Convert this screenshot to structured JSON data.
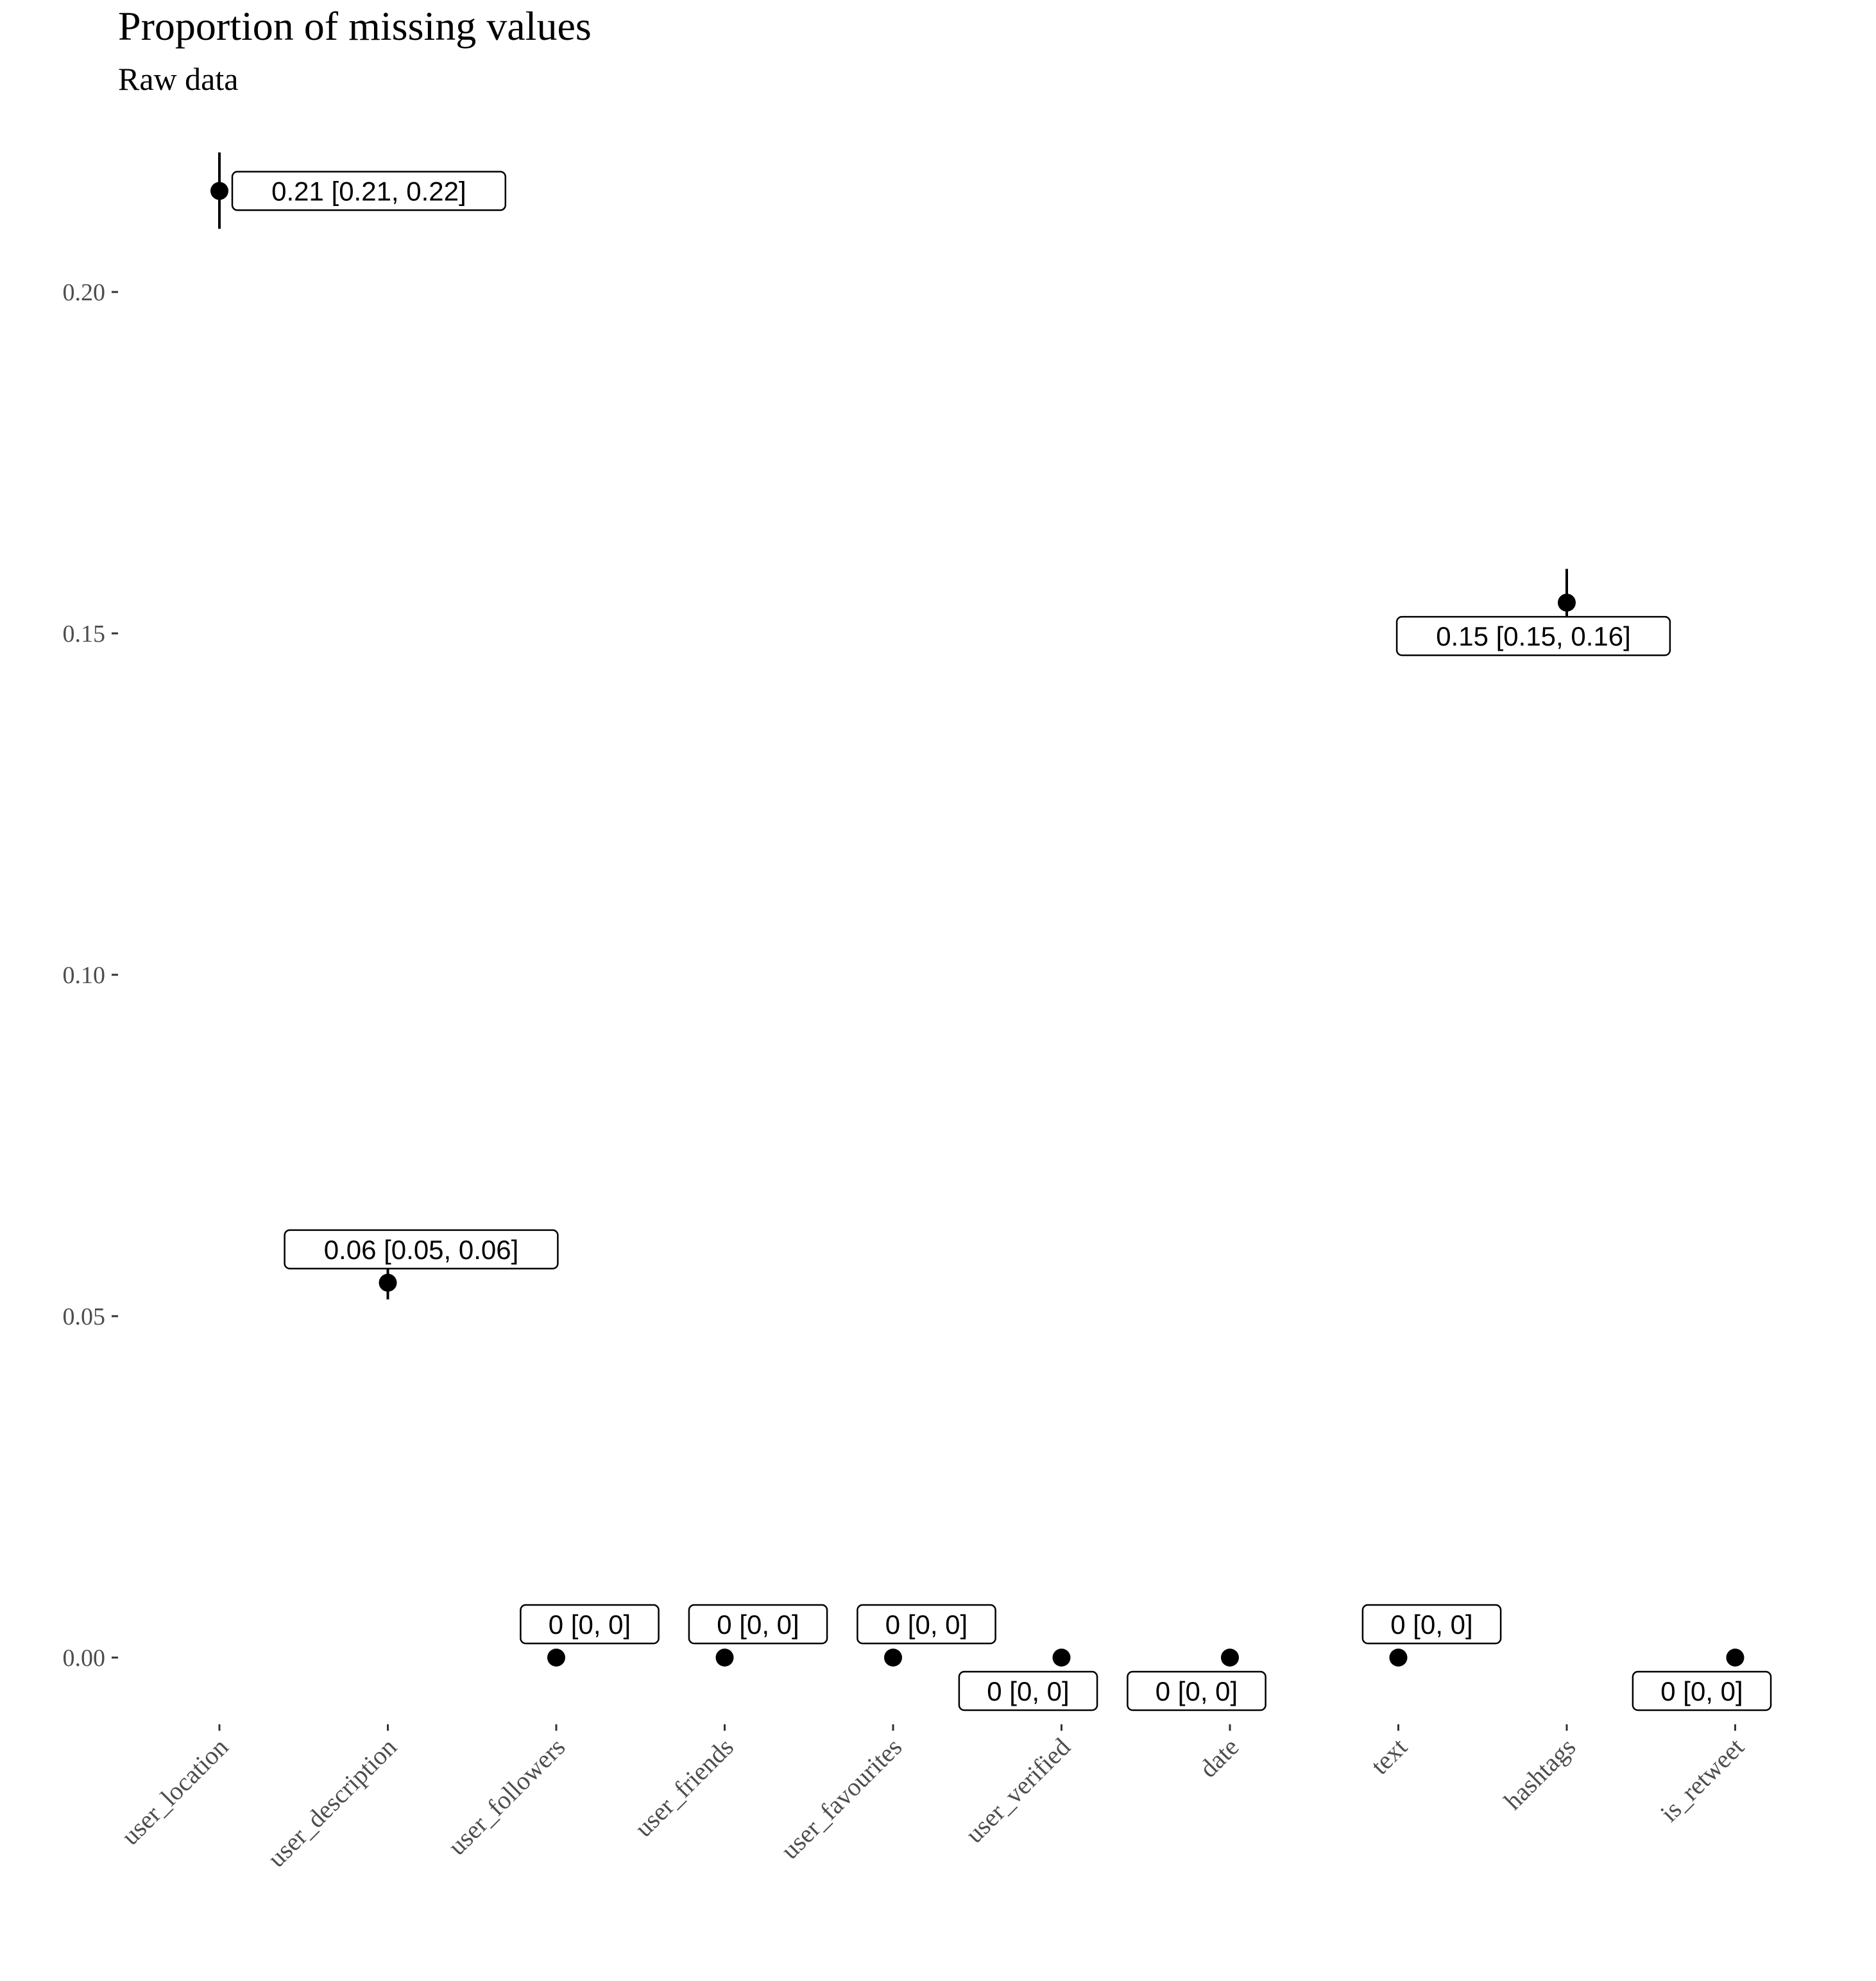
{
  "chart_data": {
    "type": "scatter",
    "title": "Proportion of missing values",
    "subtitle": "Raw data",
    "xlabel": "",
    "ylabel": "",
    "ylim": [
      -0.012,
      0.225
    ],
    "y_ticks": [
      0.0,
      0.05,
      0.1,
      0.15,
      0.2
    ],
    "y_tick_labels": [
      "0.00",
      "0.05",
      "0.10",
      "0.15",
      "0.20"
    ],
    "grid": false,
    "categories": [
      "user_location",
      "user_description",
      "user_followers",
      "user_friends",
      "user_favourites",
      "user_verified",
      "date",
      "text",
      "hashtags",
      "is_retweet"
    ],
    "points": [
      {
        "category": "user_location",
        "value": 0.2148,
        "low": 0.2102,
        "high": 0.2195,
        "label": "0.21 [0.21, 0.22]",
        "label_side": "right"
      },
      {
        "category": "user_description",
        "value": 0.0549,
        "low": 0.0534,
        "high": 0.0563,
        "label": "0.06 [0.05, 0.06]",
        "label_side": "above"
      },
      {
        "category": "user_followers",
        "value": 0,
        "low": 0,
        "high": 0,
        "label": "0 [0, 0]",
        "label_side": "above"
      },
      {
        "category": "user_friends",
        "value": 0,
        "low": 0,
        "high": 0,
        "label": "0 [0, 0]",
        "label_side": "above"
      },
      {
        "category": "user_favourites",
        "value": 0,
        "low": 0,
        "high": 0,
        "label": "0 [0, 0]",
        "label_side": "above"
      },
      {
        "category": "user_verified",
        "value": 0,
        "low": 0,
        "high": 0,
        "label": "0 [0, 0]",
        "label_side": "below"
      },
      {
        "category": "date",
        "value": 0,
        "low": 0,
        "high": 0,
        "label": "0 [0, 0]",
        "label_side": "below"
      },
      {
        "category": "text",
        "value": 0,
        "low": 0,
        "high": 0,
        "label": "0 [0, 0]",
        "label_side": "above"
      },
      {
        "category": "hashtags",
        "value": 0.1545,
        "low": 0.1505,
        "high": 0.1585,
        "label": "0.15 [0.15, 0.16]",
        "label_side": "below"
      },
      {
        "category": "is_retweet",
        "value": 0,
        "low": 0,
        "high": 0,
        "label": "0 [0, 0]",
        "label_side": "below"
      }
    ]
  }
}
